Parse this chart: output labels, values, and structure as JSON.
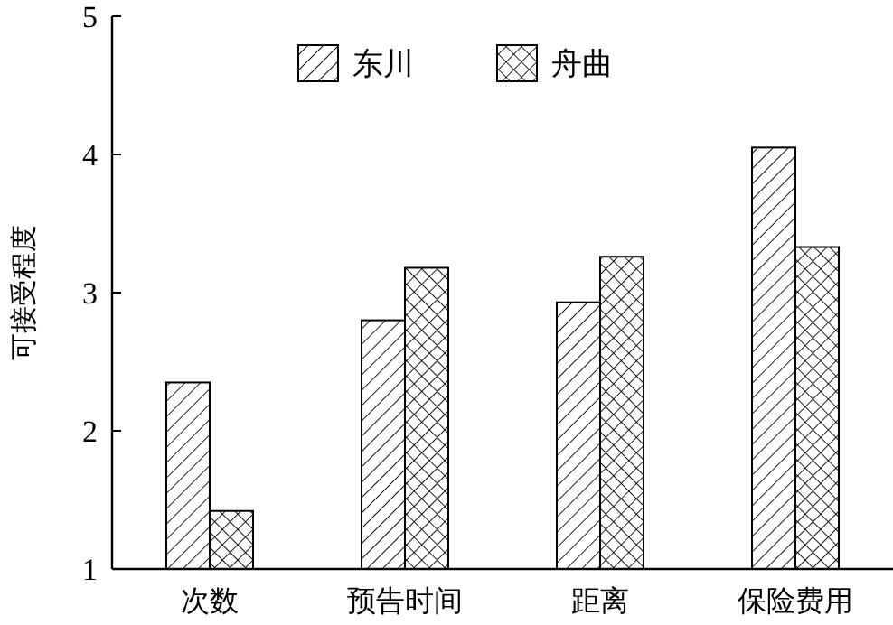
{
  "chart_data": {
    "type": "bar",
    "ylabel": "可接受程度",
    "categories": [
      "次数",
      "预告时间",
      "距离",
      "保险费用"
    ],
    "series": [
      {
        "name": "东川",
        "color": "#000000",
        "values": [
          2.35,
          2.8,
          2.93,
          4.05
        ]
      },
      {
        "name": "舟曲",
        "color": "#000000",
        "values": [
          1.42,
          3.18,
          3.26,
          3.33
        ]
      }
    ],
    "ylim": [
      1,
      5
    ],
    "yticks": [
      1,
      2,
      3,
      4,
      5
    ],
    "grid": false,
    "legend": "top"
  }
}
